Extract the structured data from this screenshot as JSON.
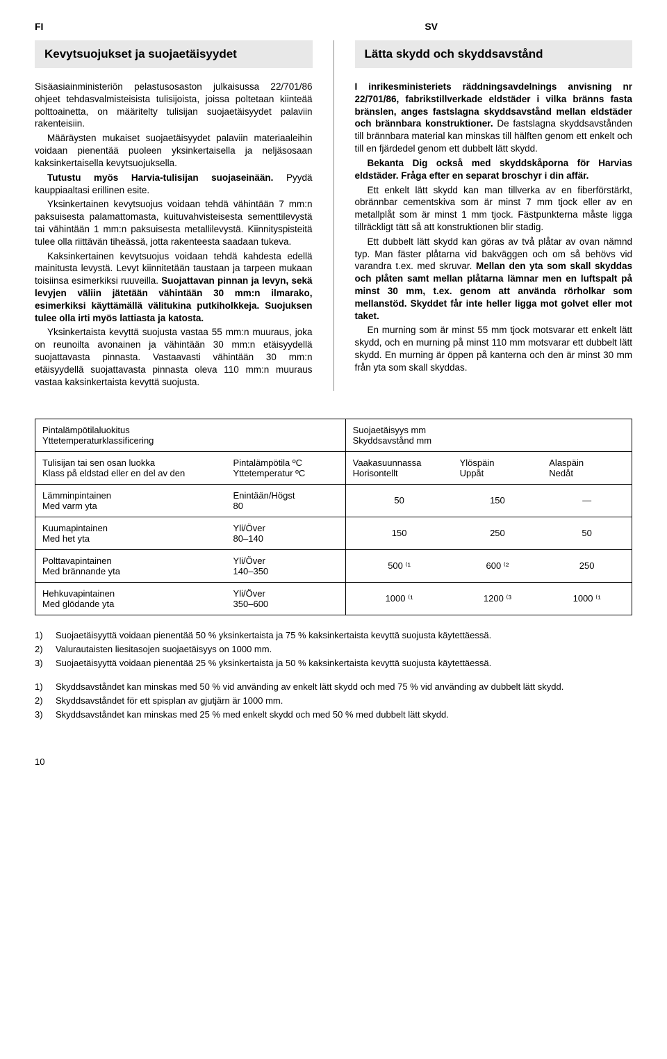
{
  "lang_left": "FI",
  "lang_right": "SV",
  "left": {
    "title": "Kevytsuojukset ja suojaetäisyydet",
    "p1": "Sisäasiainministeriön pelastusosaston julkaisussa 22/701/86 ohjeet tehdasvalmisteisista tulisijoista, joissa poltetaan kiinteää polttoainetta, on määritelty tulisijan suojaetäisyydet palaviin rakenteisiin.",
    "p2": "Määräysten mukaiset suojaetäisyydet palaviin materiaaleihin voidaan pienentää puoleen yksinkertaisella ja neljäsosaan kaksinkertaisella kevytsuojuksella.",
    "p3a": "Tutustu myös Harvia-tulisijan suojaseinään.",
    "p3b": " Pyydä kauppiaaltasi erillinen esite.",
    "p4": "Yksinkertainen kevytsuojus voidaan tehdä vähintään 7 mm:n paksuisesta palamattomasta, kuituvahvisteisesta sementtilevystä tai vähintään 1 mm:n paksuisesta metallilevystä. Kiinnityspisteitä tulee olla riittävän tiheässä, jotta rakenteesta saadaan tukeva.",
    "p5a": "Kaksinkertainen kevytsuojus voidaan tehdä kahdesta edellä mainitusta levystä. Levyt kiinnitetään taustaan ja tarpeen mukaan toisiinsa esimerkiksi ruuveilla. ",
    "p5b": "Suojattavan pinnan ja levyn, sekä levyjen väliin jätetään vähintään 30 mm:n ilmarako, esimerkiksi käyttämällä välitukina putkiholkkeja. Suojuksen tulee olla irti myös lattiasta ja katosta.",
    "p6": "Yksinkertaista kevyttä suojusta vastaa 55 mm:n muuraus, joka on reunoilta avonainen ja vähintään 30 mm:n etäisyydellä suojattavasta pinnasta. Vastaavasti vähintään 30 mm:n etäisyydellä suojattavasta pinnasta oleva 110 mm:n muuraus vastaa kaksinkertaista kevyttä suojusta."
  },
  "right": {
    "title": "Lätta skydd och skyddsavstånd",
    "p1a": "I inrikesministeriets räddningsavdelnings anvisning nr 22/701/86, fabrikstillverkade eldstäder i vilka bränns fasta bränslen, anges fastslagna skyddsavstånd mellan eldstäder och brännbara konstruktioner.",
    "p1b": " De fastslagna skyddsavstånden till brännbara material kan minskas till hälften genom ett enkelt och till en fjärdedel genom ett dubbelt lätt skydd.",
    "p2a": "Bekanta Dig också med skyddskåporna för Harvias eldstäder.",
    "p2b": " Fråga efter en separat broschyr i din affär.",
    "p3": "Ett enkelt lätt skydd kan man tillverka av en fiberförstärkt, obrännbar cementskiva som är minst 7 mm tjock eller av en metallplåt som är minst 1 mm tjock. Fästpunkterna måste ligga tillräckligt tätt så att konstruktionen blir stadig.",
    "p4a": "Ett dubbelt lätt skydd kan göras av två plåtar av ovan nämnd typ. Man fäster plåtarna vid bakväggen och om så behövs vid varandra t.ex. med skruvar. ",
    "p4b": "Mellan den yta som skall skyddas och plåten samt mellan plåtarna lämnar men en luftspalt på minst 30 mm, t.ex. genom att använda rörholkar som mellanstöd. Skyddet får inte heller ligga mot golvet eller mot taket.",
    "p5": "En murning som är minst 55 mm tjock motsvarar ett enkelt lätt skydd, och en murning på minst 110 mm motsvarar ett dubbelt lätt skydd. En murning är öppen på kanterna och den är minst 30 mm från yta som skall skyddas."
  },
  "table": {
    "h1_l1": "Pintalämpötilaluokitus",
    "h1_l2": "Yttetemperaturklassificering",
    "h2_l1": "Suojaetäisyys mm",
    "h2_l2": "Skyddsavstånd mm",
    "sh1_l1": "Tulisijan tai sen osan luokka",
    "sh1_l2": "Klass på eldstad eller en del av den",
    "sh2_l1": "Pintalämpötila ºC",
    "sh2_l2": "Yttetemperatur ºC",
    "sh3_l1": "Vaakasuunnassa",
    "sh3_l2": "Horisontellt",
    "sh4_l1": "Ylöspäin",
    "sh4_l2": "Uppåt",
    "sh5_l1": "Alaspäin",
    "sh5_l2": "Nedåt",
    "rows": [
      {
        "c1a": "Lämminpintainen",
        "c1b": "Med varm yta",
        "c2a": "Enintään/Högst",
        "c2b": "80",
        "c3": "50",
        "c4": "150",
        "c5": "—"
      },
      {
        "c1a": "Kuumapintainen",
        "c1b": "Med het yta",
        "c2a": "Yli/Över",
        "c2b": "80–140",
        "c3": "150",
        "c4": "250",
        "c5": "50"
      },
      {
        "c1a": "Polttavapintainen",
        "c1b": "Med brännande yta",
        "c2a": "Yli/Över",
        "c2b": "140–350",
        "c3": "500 ⁽¹",
        "c4": "600 ⁽²",
        "c5": "250"
      },
      {
        "c1a": "Hehkuvapintainen",
        "c1b": "Med glödande yta",
        "c2a": "Yli/Över",
        "c2b": "350–600",
        "c3": "1000 ⁽¹",
        "c4": "1200 ⁽³",
        "c5": "1000 ⁽¹"
      }
    ]
  },
  "footnotes_fi": [
    {
      "n": "1)",
      "t": "Suojaetäisyyttä voidaan pienentää 50 % yksinkertaista ja 75 % kaksinkertaista kevyttä suojusta käytettäessä."
    },
    {
      "n": "2)",
      "t": "Valurautaisten liesitasojen suojaetäisyys on 1000 mm."
    },
    {
      "n": "3)",
      "t": "Suojaetäisyyttä voidaan pienentää 25 % yksinkertaista ja 50 % kaksinkertaista kevyttä suojusta käytettäessä."
    }
  ],
  "footnotes_sv": [
    {
      "n": "1)",
      "t": "Skyddsavståndet kan minskas med 50 % vid använding av enkelt lätt skydd och med 75 % vid använding av dubbelt lätt skydd."
    },
    {
      "n": "2)",
      "t": "Skyddsavståndet för ett spisplan av gjutjärn är 1000 mm."
    },
    {
      "n": "3)",
      "t": "Skyddsavståndet kan minskas med 25 % med enkelt skydd och med 50 % med dubbelt lätt skydd."
    }
  ],
  "pagenum": "10"
}
